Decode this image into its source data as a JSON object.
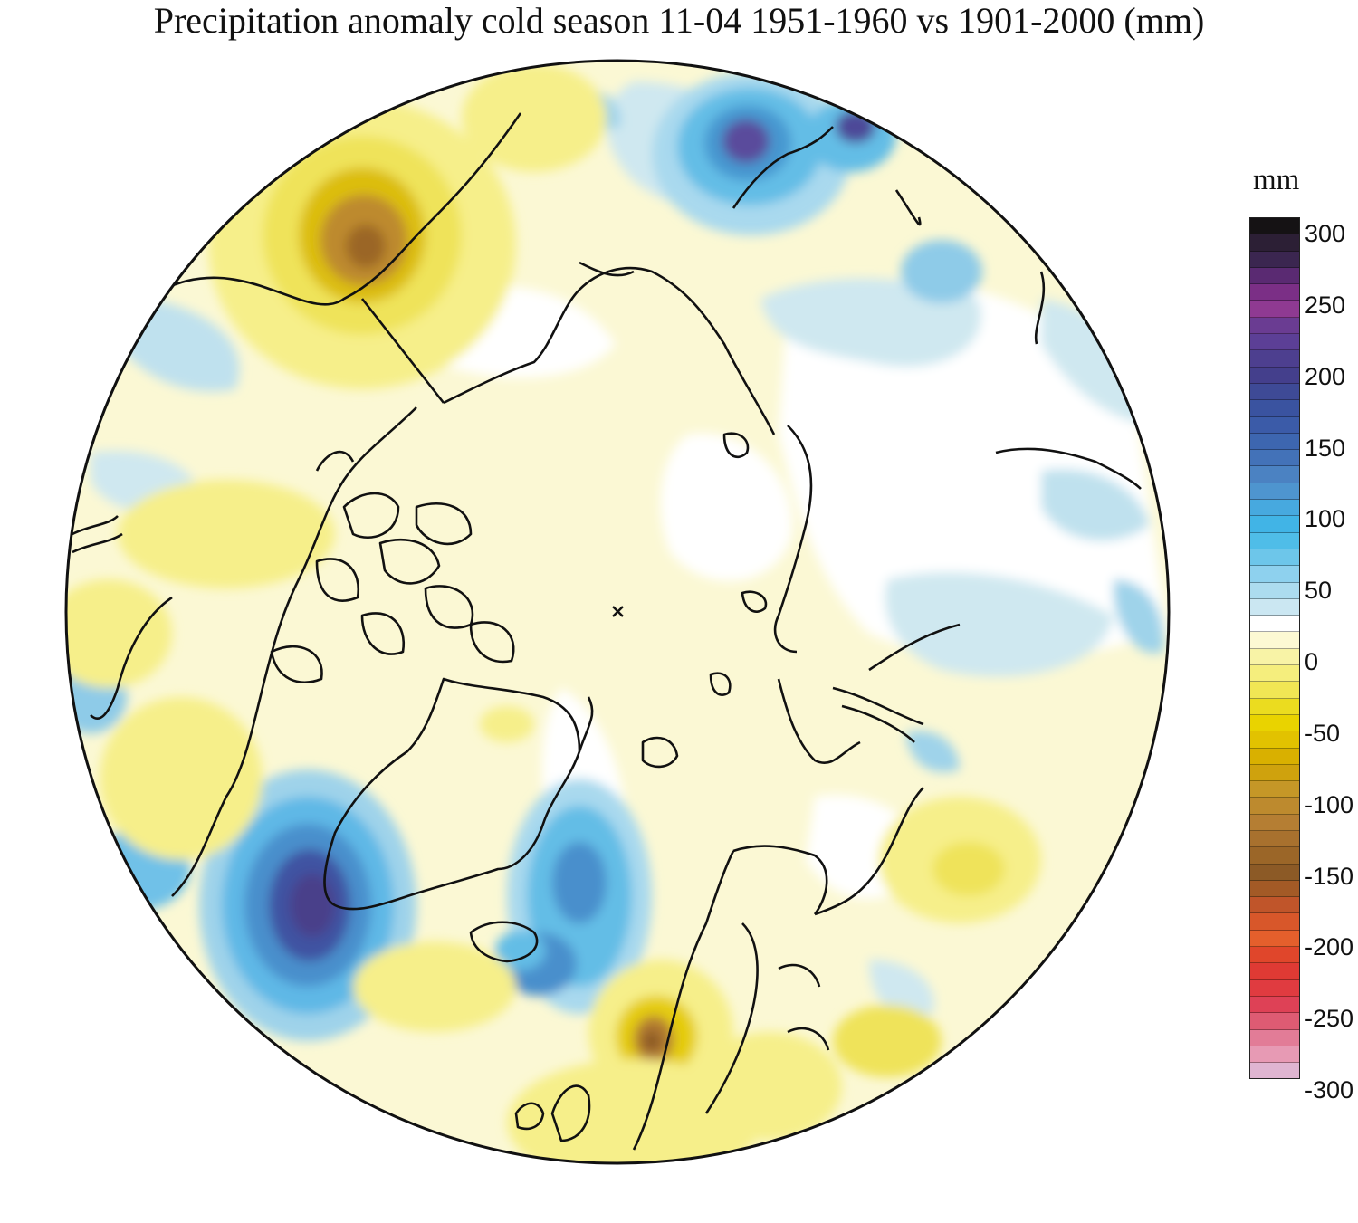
{
  "title": "Precipitation anomaly cold season 11-04 1951-1960 vs 1901-2000 (mm)",
  "legend": {
    "unit": "mm",
    "ticks": [
      "300",
      "250",
      "200",
      "150",
      "100",
      "50",
      "0",
      "-50",
      "-100",
      "-150",
      "-200",
      "-250",
      "-300"
    ],
    "bands_top_to_bottom": [
      "#151214",
      "#2c1f35",
      "#3b2650",
      "#5a2a72",
      "#7b2f86",
      "#8f3a92",
      "#6a3c92",
      "#5c3f96",
      "#4d3f8f",
      "#443f8c",
      "#3e4a96",
      "#3a53a0",
      "#3b5ba8",
      "#3d66b0",
      "#4372b8",
      "#4b82c2",
      "#4e95cf",
      "#47a9df",
      "#41b4e6",
      "#4fbde8",
      "#6dc6ea",
      "#8ed1ee",
      "#acdcef",
      "#cbe7f2",
      "#ffffff",
      "#fdf9d3",
      "#f8f3a6",
      "#f5ee7d",
      "#f1e654",
      "#ebdc1f",
      "#e9d300",
      "#e2c200",
      "#d9b000",
      "#cfa20d",
      "#c59727",
      "#bd8a2e",
      "#b57e33",
      "#a8712e",
      "#9b6628",
      "#8c5a26",
      "#a35a26",
      "#c0552a",
      "#d8572a",
      "#e45f2c",
      "#e0462b",
      "#df3a34",
      "#e03b40",
      "#de4156",
      "#de5b73",
      "#e27c97",
      "#e79ab4",
      "#dfb5d1"
    ]
  },
  "map": {
    "projection": "north polar stereographic",
    "features": [
      "precipitation-anomaly-field",
      "coastlines",
      "north-pole-marker"
    ]
  }
}
